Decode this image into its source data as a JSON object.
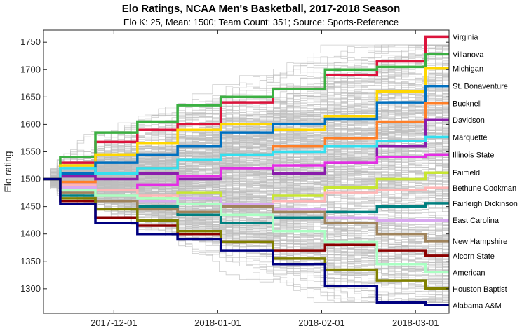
{
  "chart_data": {
    "type": "line",
    "title": "Elo Ratings, NCAA Men's Basketball, 2017-2018 Season",
    "subtitle": "Elo K: 25, Mean: 1500; Team Count: 351; Source: Sports-Reference",
    "xlabel": "",
    "ylabel": "Elo rating",
    "grid": false,
    "xlim": [
      "2017-11-10",
      "2018-03-11"
    ],
    "ylim": [
      1255,
      1772
    ],
    "x_ticks": [
      "2017-12-01",
      "2018-01-01",
      "2018-02-01",
      "2018-03-01"
    ],
    "y_ticks": [
      1300,
      1350,
      1400,
      1450,
      1500,
      1550,
      1600,
      1650,
      1700,
      1750
    ],
    "background_series": {
      "count": 351,
      "color": "#bdbdbd",
      "note": "one gray line per team"
    },
    "series": [
      {
        "name": "Virginia",
        "color": "#dc143c",
        "points": [
          [
            "2017-11-10",
            1500
          ],
          [
            "2017-11-20",
            1530
          ],
          [
            "2017-12-01",
            1568
          ],
          [
            "2017-12-15",
            1590
          ],
          [
            "2017-12-25",
            1600
          ],
          [
            "2018-01-10",
            1640
          ],
          [
            "2018-01-25",
            1665
          ],
          [
            "2018-02-10",
            1690
          ],
          [
            "2018-02-25",
            1715
          ],
          [
            "2018-03-11",
            1760
          ]
        ]
      },
      {
        "name": "Villanova",
        "color": "#3cb043",
        "points": [
          [
            "2017-11-10",
            1500
          ],
          [
            "2017-11-20",
            1540
          ],
          [
            "2017-12-01",
            1585
          ],
          [
            "2017-12-15",
            1605
          ],
          [
            "2017-12-25",
            1635
          ],
          [
            "2018-01-10",
            1650
          ],
          [
            "2018-01-25",
            1665
          ],
          [
            "2018-02-10",
            1700
          ],
          [
            "2018-02-25",
            1705
          ],
          [
            "2018-03-11",
            1728
          ]
        ]
      },
      {
        "name": "Michigan",
        "color": "#ffd700",
        "points": [
          [
            "2017-11-10",
            1500
          ],
          [
            "2017-11-20",
            1525
          ],
          [
            "2017-12-01",
            1545
          ],
          [
            "2017-12-15",
            1565
          ],
          [
            "2017-12-25",
            1590
          ],
          [
            "2018-01-10",
            1600
          ],
          [
            "2018-01-25",
            1590
          ],
          [
            "2018-02-10",
            1615
          ],
          [
            "2018-02-25",
            1660
          ],
          [
            "2018-03-11",
            1702
          ]
        ]
      },
      {
        "name": "St. Bonaventure",
        "color": "#0070c0",
        "points": [
          [
            "2017-11-10",
            1500
          ],
          [
            "2017-11-20",
            1510
          ],
          [
            "2017-12-01",
            1530
          ],
          [
            "2017-12-15",
            1545
          ],
          [
            "2017-12-25",
            1560
          ],
          [
            "2018-01-10",
            1585
          ],
          [
            "2018-01-25",
            1600
          ],
          [
            "2018-02-10",
            1610
          ],
          [
            "2018-02-25",
            1640
          ],
          [
            "2018-03-11",
            1670
          ]
        ]
      },
      {
        "name": "Bucknell",
        "color": "#ff7f27",
        "points": [
          [
            "2017-11-10",
            1500
          ],
          [
            "2017-11-20",
            1495
          ],
          [
            "2017-12-01",
            1510
          ],
          [
            "2017-12-15",
            1520
          ],
          [
            "2017-12-25",
            1535
          ],
          [
            "2018-01-10",
            1545
          ],
          [
            "2018-01-25",
            1560
          ],
          [
            "2018-02-10",
            1575
          ],
          [
            "2018-02-25",
            1605
          ],
          [
            "2018-03-11",
            1638
          ]
        ]
      },
      {
        "name": "Davidson",
        "color": "#8a1dab",
        "points": [
          [
            "2017-11-10",
            1500
          ],
          [
            "2017-11-20",
            1505
          ],
          [
            "2017-12-01",
            1500
          ],
          [
            "2017-12-15",
            1510
          ],
          [
            "2017-12-25",
            1500
          ],
          [
            "2018-01-10",
            1520
          ],
          [
            "2018-01-25",
            1510
          ],
          [
            "2018-02-10",
            1530
          ],
          [
            "2018-02-25",
            1560
          ],
          [
            "2018-03-11",
            1608
          ]
        ]
      },
      {
        "name": "Marquette",
        "color": "#33e0f0",
        "points": [
          [
            "2017-11-10",
            1500
          ],
          [
            "2017-11-20",
            1520
          ],
          [
            "2017-12-01",
            1510
          ],
          [
            "2017-12-15",
            1520
          ],
          [
            "2017-12-25",
            1535
          ],
          [
            "2018-01-10",
            1545
          ],
          [
            "2018-01-25",
            1550
          ],
          [
            "2018-02-10",
            1560
          ],
          [
            "2018-02-25",
            1570
          ],
          [
            "2018-03-11",
            1577
          ]
        ]
      },
      {
        "name": "Illinois State",
        "color": "#e52ee5",
        "points": [
          [
            "2017-11-10",
            1500
          ],
          [
            "2017-11-20",
            1490
          ],
          [
            "2017-12-01",
            1480
          ],
          [
            "2017-12-15",
            1490
          ],
          [
            "2017-12-25",
            1505
          ],
          [
            "2018-01-10",
            1520
          ],
          [
            "2018-01-25",
            1525
          ],
          [
            "2018-02-10",
            1530
          ],
          [
            "2018-02-25",
            1540
          ],
          [
            "2018-03-11",
            1545
          ]
        ]
      },
      {
        "name": "Fairfield",
        "color": "#c8e632",
        "points": [
          [
            "2017-11-10",
            1500
          ],
          [
            "2017-11-20",
            1480
          ],
          [
            "2017-12-01",
            1470
          ],
          [
            "2017-12-15",
            1465
          ],
          [
            "2017-12-25",
            1475
          ],
          [
            "2018-01-10",
            1455
          ],
          [
            "2018-01-25",
            1470
          ],
          [
            "2018-02-10",
            1485
          ],
          [
            "2018-02-25",
            1500
          ],
          [
            "2018-03-11",
            1512
          ]
        ]
      },
      {
        "name": "Bethune Cookman",
        "color": "#ffb6b6",
        "points": [
          [
            "2017-11-10",
            1500
          ],
          [
            "2017-11-20",
            1490
          ],
          [
            "2017-12-01",
            1480
          ],
          [
            "2017-12-15",
            1470
          ],
          [
            "2017-12-25",
            1455
          ],
          [
            "2018-01-10",
            1450
          ],
          [
            "2018-01-25",
            1460
          ],
          [
            "2018-02-10",
            1475
          ],
          [
            "2018-02-25",
            1480
          ],
          [
            "2018-03-11",
            1484
          ]
        ]
      },
      {
        "name": "Fairleigh Dickinson",
        "color": "#008080",
        "points": [
          [
            "2017-11-10",
            1500
          ],
          [
            "2017-11-20",
            1470
          ],
          [
            "2017-12-01",
            1460
          ],
          [
            "2017-12-15",
            1450
          ],
          [
            "2017-12-25",
            1435
          ],
          [
            "2018-01-10",
            1420
          ],
          [
            "2018-01-25",
            1430
          ],
          [
            "2018-02-10",
            1440
          ],
          [
            "2018-02-25",
            1450
          ],
          [
            "2018-03-11",
            1456
          ]
        ]
      },
      {
        "name": "East Carolina",
        "color": "#d8a8f0",
        "points": [
          [
            "2017-11-10",
            1500
          ],
          [
            "2017-11-20",
            1485
          ],
          [
            "2017-12-01",
            1470
          ],
          [
            "2017-12-15",
            1460
          ],
          [
            "2017-12-25",
            1465
          ],
          [
            "2018-01-10",
            1455
          ],
          [
            "2018-01-25",
            1445
          ],
          [
            "2018-02-10",
            1430
          ],
          [
            "2018-02-25",
            1425
          ],
          [
            "2018-03-11",
            1425
          ]
        ]
      },
      {
        "name": "New Hampshire",
        "color": "#a0845c",
        "points": [
          [
            "2017-11-10",
            1500
          ],
          [
            "2017-11-20",
            1475
          ],
          [
            "2017-12-01",
            1460
          ],
          [
            "2017-12-15",
            1445
          ],
          [
            "2017-12-25",
            1440
          ],
          [
            "2018-01-10",
            1450
          ],
          [
            "2018-01-25",
            1440
          ],
          [
            "2018-02-10",
            1420
          ],
          [
            "2018-02-25",
            1400
          ],
          [
            "2018-03-11",
            1387
          ]
        ]
      },
      {
        "name": "Alcorn State",
        "color": "#8b0000",
        "points": [
          [
            "2017-11-10",
            1500
          ],
          [
            "2017-11-20",
            1460
          ],
          [
            "2017-12-01",
            1430
          ],
          [
            "2017-12-15",
            1415
          ],
          [
            "2017-12-25",
            1400
          ],
          [
            "2018-01-10",
            1385
          ],
          [
            "2018-01-25",
            1370
          ],
          [
            "2018-02-10",
            1380
          ],
          [
            "2018-02-25",
            1370
          ],
          [
            "2018-03-11",
            1360
          ]
        ]
      },
      {
        "name": "American",
        "color": "#aaffc3",
        "points": [
          [
            "2017-11-10",
            1500
          ],
          [
            "2017-11-20",
            1480
          ],
          [
            "2017-12-01",
            1470
          ],
          [
            "2017-12-15",
            1465
          ],
          [
            "2017-12-25",
            1455
          ],
          [
            "2018-01-10",
            1435
          ],
          [
            "2018-01-25",
            1405
          ],
          [
            "2018-02-10",
            1385
          ],
          [
            "2018-02-25",
            1345
          ],
          [
            "2018-03-11",
            1330
          ]
        ]
      },
      {
        "name": "Houston Baptist",
        "color": "#808000",
        "points": [
          [
            "2017-11-10",
            1500
          ],
          [
            "2017-11-20",
            1465
          ],
          [
            "2017-12-01",
            1445
          ],
          [
            "2017-12-15",
            1425
          ],
          [
            "2017-12-25",
            1405
          ],
          [
            "2018-01-10",
            1385
          ],
          [
            "2018-01-25",
            1355
          ],
          [
            "2018-02-10",
            1335
          ],
          [
            "2018-02-25",
            1315
          ],
          [
            "2018-03-11",
            1300
          ]
        ]
      },
      {
        "name": "Alabama A&M",
        "color": "#000080",
        "points": [
          [
            "2017-11-10",
            1500
          ],
          [
            "2017-11-20",
            1455
          ],
          [
            "2017-12-01",
            1420
          ],
          [
            "2017-12-15",
            1400
          ],
          [
            "2017-12-25",
            1390
          ],
          [
            "2018-01-10",
            1370
          ],
          [
            "2018-01-25",
            1345
          ],
          [
            "2018-02-10",
            1305
          ],
          [
            "2018-02-25",
            1275
          ],
          [
            "2018-03-11",
            1270
          ]
        ]
      }
    ]
  }
}
